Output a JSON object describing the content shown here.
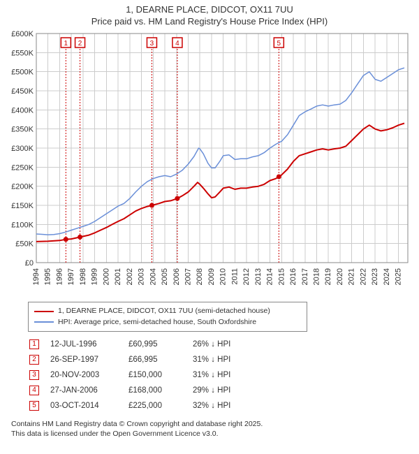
{
  "title_line1": "1, DEARNE PLACE, DIDCOT, OX11 7UU",
  "title_line2": "Price paid vs. HM Land Registry's House Price Index (HPI)",
  "chart": {
    "type": "line",
    "background_color": "#ffffff",
    "grid_color": "#cccccc",
    "xlim": [
      1994,
      2025.8
    ],
    "ylim": [
      0,
      600000
    ],
    "ytick_step": 50000,
    "yticks_labels": [
      "£0",
      "£50K",
      "£100K",
      "£150K",
      "£200K",
      "£250K",
      "£300K",
      "£350K",
      "£400K",
      "£450K",
      "£500K",
      "£550K",
      "£600K"
    ],
    "xticks": [
      1994,
      1995,
      1996,
      1997,
      1998,
      1999,
      2000,
      2001,
      2002,
      2003,
      2004,
      2005,
      2006,
      2007,
      2008,
      2009,
      2010,
      2011,
      2012,
      2013,
      2014,
      2015,
      2016,
      2017,
      2018,
      2019,
      2020,
      2021,
      2022,
      2023,
      2024,
      2025
    ],
    "series": [
      {
        "name": "property",
        "color": "#cc0000",
        "width": 2,
        "points": [
          [
            1994.0,
            55000
          ],
          [
            1995.0,
            56000
          ],
          [
            1996.0,
            58000
          ],
          [
            1996.53,
            60995
          ],
          [
            1997.0,
            62000
          ],
          [
            1997.74,
            66995
          ],
          [
            1998.5,
            72000
          ],
          [
            1999.0,
            78000
          ],
          [
            1999.5,
            85000
          ],
          [
            2000.0,
            92000
          ],
          [
            2000.5,
            100000
          ],
          [
            2001.0,
            108000
          ],
          [
            2001.5,
            115000
          ],
          [
            2002.0,
            125000
          ],
          [
            2002.5,
            135000
          ],
          [
            2003.0,
            142000
          ],
          [
            2003.5,
            147000
          ],
          [
            2003.89,
            150000
          ],
          [
            2004.5,
            155000
          ],
          [
            2005.0,
            160000
          ],
          [
            2005.5,
            162000
          ],
          [
            2006.07,
            168000
          ],
          [
            2006.5,
            175000
          ],
          [
            2007.0,
            185000
          ],
          [
            2007.5,
            200000
          ],
          [
            2007.8,
            210000
          ],
          [
            2008.0,
            205000
          ],
          [
            2008.3,
            195000
          ],
          [
            2008.7,
            180000
          ],
          [
            2009.0,
            170000
          ],
          [
            2009.3,
            172000
          ],
          [
            2009.7,
            185000
          ],
          [
            2010.0,
            195000
          ],
          [
            2010.5,
            198000
          ],
          [
            2011.0,
            192000
          ],
          [
            2011.5,
            195000
          ],
          [
            2012.0,
            195000
          ],
          [
            2012.5,
            198000
          ],
          [
            2013.0,
            200000
          ],
          [
            2013.5,
            205000
          ],
          [
            2014.0,
            215000
          ],
          [
            2014.5,
            220000
          ],
          [
            2014.76,
            225000
          ],
          [
            2015.0,
            230000
          ],
          [
            2015.5,
            245000
          ],
          [
            2016.0,
            265000
          ],
          [
            2016.5,
            280000
          ],
          [
            2017.0,
            285000
          ],
          [
            2017.5,
            290000
          ],
          [
            2018.0,
            295000
          ],
          [
            2018.5,
            298000
          ],
          [
            2019.0,
            295000
          ],
          [
            2019.5,
            298000
          ],
          [
            2020.0,
            300000
          ],
          [
            2020.5,
            305000
          ],
          [
            2021.0,
            320000
          ],
          [
            2021.5,
            335000
          ],
          [
            2022.0,
            350000
          ],
          [
            2022.5,
            360000
          ],
          [
            2023.0,
            350000
          ],
          [
            2023.5,
            345000
          ],
          [
            2024.0,
            348000
          ],
          [
            2024.5,
            353000
          ],
          [
            2025.0,
            360000
          ],
          [
            2025.5,
            365000
          ]
        ]
      },
      {
        "name": "hpi",
        "color": "#6a8fd8",
        "width": 1.5,
        "points": [
          [
            1994.0,
            75000
          ],
          [
            1994.5,
            74000
          ],
          [
            1995.0,
            73000
          ],
          [
            1995.5,
            73500
          ],
          [
            1996.0,
            76000
          ],
          [
            1996.5,
            80000
          ],
          [
            1997.0,
            85000
          ],
          [
            1997.5,
            90000
          ],
          [
            1998.0,
            95000
          ],
          [
            1998.5,
            100000
          ],
          [
            1999.0,
            108000
          ],
          [
            1999.5,
            118000
          ],
          [
            2000.0,
            128000
          ],
          [
            2000.5,
            138000
          ],
          [
            2001.0,
            148000
          ],
          [
            2001.5,
            155000
          ],
          [
            2002.0,
            168000
          ],
          [
            2002.5,
            185000
          ],
          [
            2003.0,
            200000
          ],
          [
            2003.5,
            212000
          ],
          [
            2004.0,
            220000
          ],
          [
            2004.5,
            225000
          ],
          [
            2005.0,
            228000
          ],
          [
            2005.5,
            225000
          ],
          [
            2006.0,
            232000
          ],
          [
            2006.5,
            242000
          ],
          [
            2007.0,
            258000
          ],
          [
            2007.5,
            278000
          ],
          [
            2007.9,
            300000
          ],
          [
            2008.0,
            298000
          ],
          [
            2008.3,
            285000
          ],
          [
            2008.7,
            260000
          ],
          [
            2009.0,
            248000
          ],
          [
            2009.3,
            248000
          ],
          [
            2009.7,
            265000
          ],
          [
            2010.0,
            280000
          ],
          [
            2010.5,
            282000
          ],
          [
            2011.0,
            270000
          ],
          [
            2011.5,
            272000
          ],
          [
            2012.0,
            272000
          ],
          [
            2012.5,
            277000
          ],
          [
            2013.0,
            280000
          ],
          [
            2013.5,
            288000
          ],
          [
            2014.0,
            300000
          ],
          [
            2014.5,
            310000
          ],
          [
            2015.0,
            318000
          ],
          [
            2015.5,
            335000
          ],
          [
            2016.0,
            360000
          ],
          [
            2016.5,
            385000
          ],
          [
            2017.0,
            395000
          ],
          [
            2017.5,
            402000
          ],
          [
            2018.0,
            410000
          ],
          [
            2018.5,
            413000
          ],
          [
            2019.0,
            410000
          ],
          [
            2019.5,
            413000
          ],
          [
            2020.0,
            415000
          ],
          [
            2020.5,
            425000
          ],
          [
            2021.0,
            445000
          ],
          [
            2021.5,
            468000
          ],
          [
            2022.0,
            490000
          ],
          [
            2022.5,
            500000
          ],
          [
            2023.0,
            480000
          ],
          [
            2023.5,
            475000
          ],
          [
            2024.0,
            485000
          ],
          [
            2024.5,
            495000
          ],
          [
            2025.0,
            505000
          ],
          [
            2025.5,
            510000
          ]
        ]
      }
    ],
    "sale_markers": [
      {
        "n": "1",
        "x": 1996.53,
        "y": 60995
      },
      {
        "n": "2",
        "x": 1997.74,
        "y": 66995
      },
      {
        "n": "3",
        "x": 2003.89,
        "y": 150000
      },
      {
        "n": "4",
        "x": 2006.07,
        "y": 168000
      },
      {
        "n": "5",
        "x": 2014.76,
        "y": 225000
      }
    ]
  },
  "legend": {
    "property_color": "#cc0000",
    "property_text": "1, DEARNE PLACE, DIDCOT, OX11 7UU (semi-detached house)",
    "hpi_color": "#6a8fd8",
    "hpi_text": "HPI: Average price, semi-detached house, South Oxfordshire"
  },
  "sales": [
    {
      "n": "1",
      "date": "12-JUL-1996",
      "price": "£60,995",
      "diff": "26% ↓ HPI"
    },
    {
      "n": "2",
      "date": "26-SEP-1997",
      "price": "£66,995",
      "diff": "31% ↓ HPI"
    },
    {
      "n": "3",
      "date": "20-NOV-2003",
      "price": "£150,000",
      "diff": "31% ↓ HPI"
    },
    {
      "n": "4",
      "date": "27-JAN-2006",
      "price": "£168,000",
      "diff": "29% ↓ HPI"
    },
    {
      "n": "5",
      "date": "03-OCT-2014",
      "price": "£225,000",
      "diff": "32% ↓ HPI"
    }
  ],
  "footer_line1": "Contains HM Land Registry data © Crown copyright and database right 2025.",
  "footer_line2": "This data is licensed under the Open Government Licence v3.0."
}
